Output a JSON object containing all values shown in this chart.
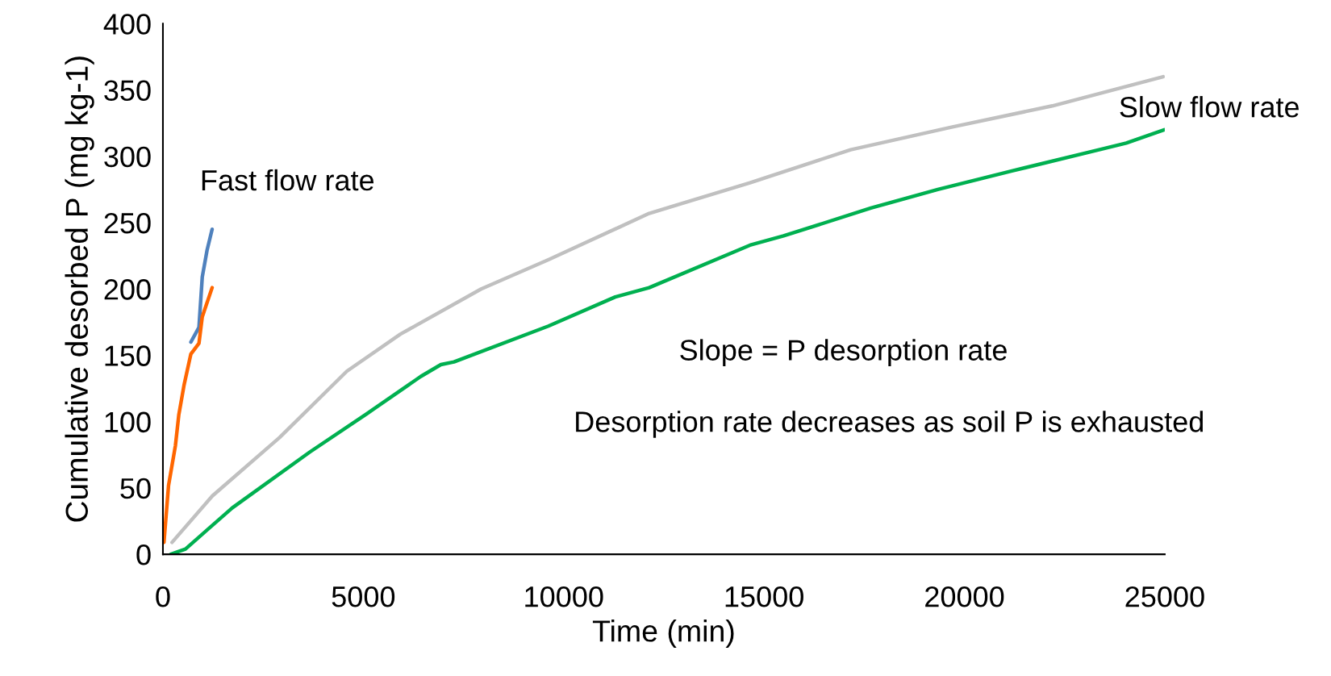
{
  "chart_data": {
    "type": "line",
    "xlabel": "Time (min)",
    "ylabel": "Cumulative desorbed P (mg kg-1)",
    "xlim": [
      0,
      25000
    ],
    "xticks": [
      0,
      5000,
      10000,
      15000,
      20000,
      25000
    ],
    "ylim": [
      0,
      400
    ],
    "yticks": [
      0,
      50,
      100,
      150,
      200,
      250,
      300,
      350,
      400
    ],
    "grid": false,
    "legend": false,
    "marker": "none",
    "line_style": "solid",
    "series": [
      {
        "color": "#4f81bd",
        "x": [
          698,
          899,
          982,
          1100,
          1228
        ],
        "values": [
          160,
          171,
          209,
          229,
          245
        ]
      },
      {
        "color": "#ff6600",
        "x": [
          26,
          141,
          312,
          396,
          530,
          698,
          899,
          982,
          1228
        ],
        "values": [
          9,
          52,
          82,
          105,
          128,
          151,
          159,
          179,
          201
        ]
      },
      {
        "color": "#c0c0c0",
        "x": [
          227,
          1234,
          2911,
          4588,
          5929,
          7941,
          9618,
          12133,
          14648,
          17163,
          19678,
          22193,
          24960
        ],
        "values": [
          9,
          44,
          88,
          138,
          166,
          200,
          222,
          257,
          280,
          305,
          322,
          338,
          360
        ]
      },
      {
        "color": "#00b050",
        "x": [
          195,
          563,
          1730,
          3662,
          5090,
          6432,
          6936,
          7264,
          9618,
          11288,
          12133,
          14648,
          15487,
          17666,
          19336,
          21187,
          23360,
          24038,
          24990
        ],
        "values": [
          0,
          4,
          35,
          77,
          106,
          134,
          143,
          145,
          172,
          194,
          201,
          233,
          240,
          261,
          275,
          289,
          305,
          310,
          320
        ]
      }
    ],
    "annotations": [
      "Fast flow rate",
      "Slow flow rate",
      "Slope = P desorption rate",
      "Desorption rate decreases as soil P is exhausted"
    ]
  }
}
